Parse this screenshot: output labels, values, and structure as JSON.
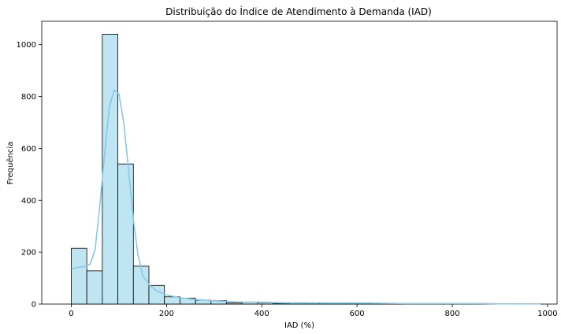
{
  "chart_data": {
    "type": "bar",
    "title": "Distribuição do Índice de Atendimento à Demanda (IAD)",
    "xlabel": "IAD (%)",
    "ylabel": "Frequência",
    "xlim": [
      -62,
      1020
    ],
    "ylim": [
      0,
      1090
    ],
    "xticks": [
      0,
      200,
      400,
      600,
      800,
      1000
    ],
    "yticks": [
      0,
      200,
      400,
      600,
      800,
      1000
    ],
    "grid": false,
    "legend": "none",
    "bar_color": "#bfe4f2",
    "bar_edge_color": "#000000",
    "kde_color": "#87c9e6",
    "bins": [
      {
        "x0": 0,
        "x1": 32.6,
        "count": 215
      },
      {
        "x0": 32.6,
        "x1": 65.2,
        "count": 128
      },
      {
        "x0": 65.2,
        "x1": 97.8,
        "count": 1040
      },
      {
        "x0": 97.8,
        "x1": 130.4,
        "count": 540
      },
      {
        "x0": 130.4,
        "x1": 163.0,
        "count": 146
      },
      {
        "x0": 163.0,
        "x1": 195.6,
        "count": 72
      },
      {
        "x0": 195.6,
        "x1": 228.2,
        "count": 28
      },
      {
        "x0": 228.2,
        "x1": 260.8,
        "count": 23
      },
      {
        "x0": 260.8,
        "x1": 293.4,
        "count": 15
      },
      {
        "x0": 293.4,
        "x1": 326.0,
        "count": 13
      },
      {
        "x0": 326.0,
        "x1": 358.6,
        "count": 4
      },
      {
        "x0": 358.6,
        "x1": 391.2,
        "count": 8
      },
      {
        "x0": 391.2,
        "x1": 423.8,
        "count": 5
      },
      {
        "x0": 423.8,
        "x1": 456.4,
        "count": 3
      },
      {
        "x0": 456.4,
        "x1": 489.0,
        "count": 4
      },
      {
        "x0": 489.0,
        "x1": 521.6,
        "count": 4
      },
      {
        "x0": 521.6,
        "x1": 554.2,
        "count": 4
      },
      {
        "x0": 554.2,
        "x1": 586.8,
        "count": 3
      },
      {
        "x0": 586.8,
        "x1": 619.4,
        "count": 4
      },
      {
        "x0": 619.4,
        "x1": 652.0,
        "count": 2
      },
      {
        "x0": 652.0,
        "x1": 684.6,
        "count": 1
      },
      {
        "x0": 684.6,
        "x1": 717.2,
        "count": 2
      },
      {
        "x0": 717.2,
        "x1": 749.8,
        "count": 1
      },
      {
        "x0": 749.8,
        "x1": 782.4,
        "count": 1
      },
      {
        "x0": 782.4,
        "x1": 815.0,
        "count": 2
      },
      {
        "x0": 815.0,
        "x1": 847.6,
        "count": 3
      },
      {
        "x0": 847.6,
        "x1": 880.2,
        "count": 2
      },
      {
        "x0": 880.2,
        "x1": 912.8,
        "count": 1
      },
      {
        "x0": 912.8,
        "x1": 945.4,
        "count": 1
      },
      {
        "x0": 945.4,
        "x1": 978.0,
        "count": 1
      }
    ],
    "kde": [
      {
        "x": 0,
        "y": 135
      },
      {
        "x": 10,
        "y": 140
      },
      {
        "x": 20,
        "y": 143
      },
      {
        "x": 30,
        "y": 145
      },
      {
        "x": 40,
        "y": 155
      },
      {
        "x": 50,
        "y": 210
      },
      {
        "x": 60,
        "y": 380
      },
      {
        "x": 70,
        "y": 580
      },
      {
        "x": 80,
        "y": 760
      },
      {
        "x": 90,
        "y": 825
      },
      {
        "x": 100,
        "y": 810
      },
      {
        "x": 110,
        "y": 700
      },
      {
        "x": 120,
        "y": 520
      },
      {
        "x": 130,
        "y": 330
      },
      {
        "x": 140,
        "y": 190
      },
      {
        "x": 150,
        "y": 110
      },
      {
        "x": 165,
        "y": 72
      },
      {
        "x": 180,
        "y": 50
      },
      {
        "x": 200,
        "y": 35
      },
      {
        "x": 230,
        "y": 24
      },
      {
        "x": 260,
        "y": 18
      },
      {
        "x": 300,
        "y": 12
      },
      {
        "x": 350,
        "y": 8
      },
      {
        "x": 400,
        "y": 7
      },
      {
        "x": 450,
        "y": 5
      },
      {
        "x": 500,
        "y": 5
      },
      {
        "x": 550,
        "y": 4
      },
      {
        "x": 600,
        "y": 4
      },
      {
        "x": 650,
        "y": 3
      },
      {
        "x": 700,
        "y": 2
      },
      {
        "x": 750,
        "y": 2
      },
      {
        "x": 800,
        "y": 2
      },
      {
        "x": 850,
        "y": 2
      },
      {
        "x": 900,
        "y": 1
      },
      {
        "x": 950,
        "y": 1
      },
      {
        "x": 985,
        "y": 1
      }
    ]
  }
}
